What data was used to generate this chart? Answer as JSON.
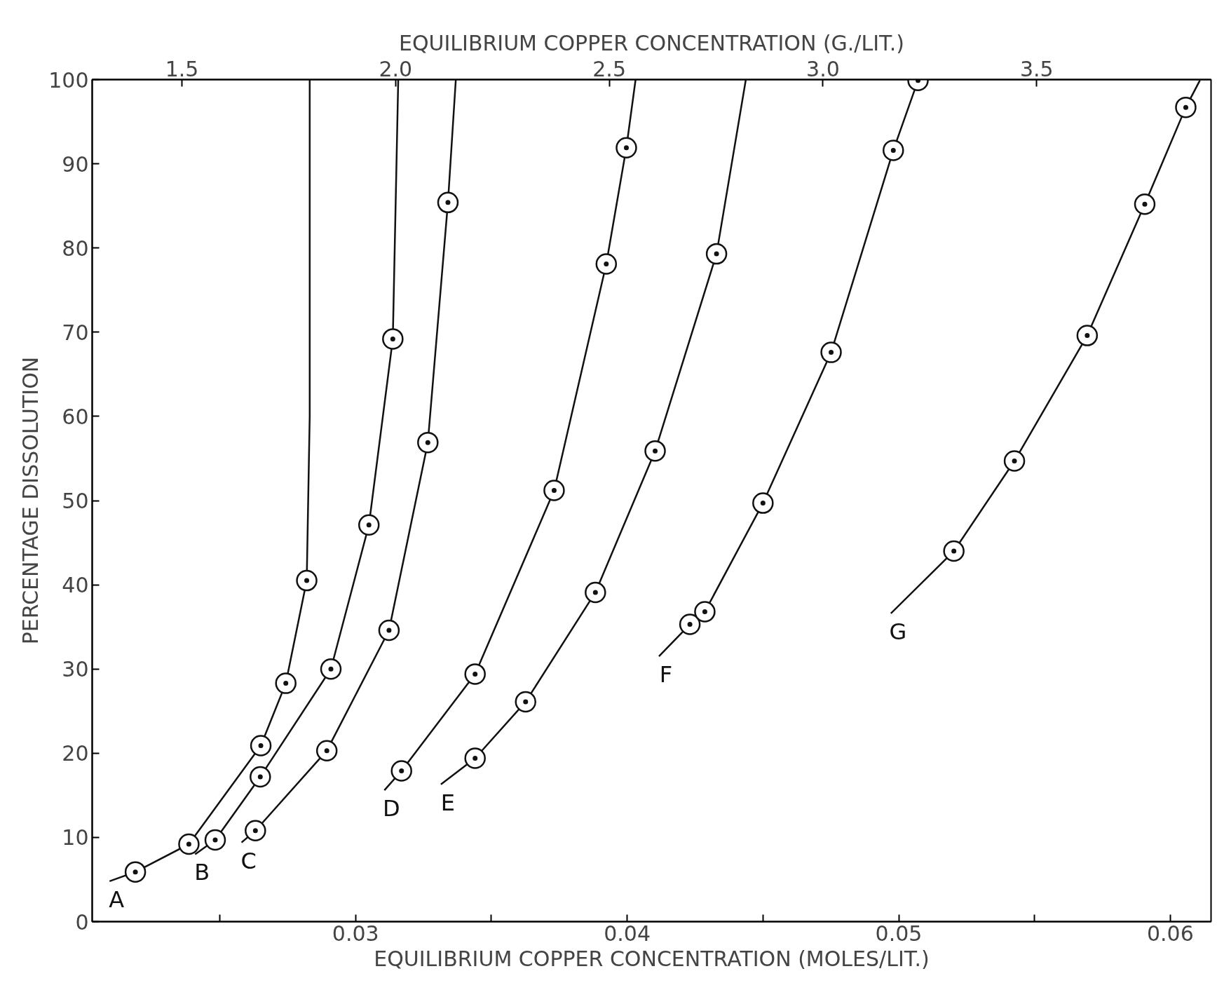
{
  "chart_data": {
    "type": "line",
    "xlabel": "EQUILIBRIUM COPPER CONCENTRATION (MOLES/LIT.)",
    "x2label": "EQUILIBRIUM COPPER CONCENTRATION (G./LIT.)",
    "ylabel": "PERCENTAGE DISSOLUTION",
    "xlim": [
      0.0203,
      0.0615
    ],
    "xticks": [
      {
        "value": 0.025,
        "label": null
      },
      0.03,
      {
        "value": 0.035,
        "label": null
      },
      0.04,
      {
        "value": 0.045,
        "label": null
      },
      0.05,
      {
        "value": 0.055,
        "label": null
      },
      0.06
    ],
    "x2lim": [
      1.29,
      3.908
    ],
    "x2ticks": [
      1.5,
      {
        "value": 2.0,
        "label": "2.0"
      },
      2.5,
      {
        "value": 3.0,
        "label": "3.0"
      },
      3.5
    ],
    "ylim": [
      0,
      100
    ],
    "yticks": [
      0,
      10,
      20,
      30,
      40,
      50,
      60,
      70,
      80,
      90,
      100
    ],
    "grid": false,
    "marker": "circle",
    "line_style": "solid",
    "series": [
      {
        "name": "A",
        "color": "#111111",
        "x": [
          0.02094,
          0.02189,
          0.02386,
          0.02651,
          0.02743,
          0.0282,
          0.02831,
          0.02831
        ],
        "values": [
          4.8,
          5.9,
          9.2,
          20.9,
          28.3,
          40.5,
          60,
          100
        ]
      },
      {
        "type": "scatter",
        "color": "#111111",
        "x": [
          0.02189,
          0.02386,
          0.02651,
          0.02743,
          0.0282
        ],
        "values": [
          5.9,
          9.2,
          20.9,
          28.3,
          40.5
        ]
      },
      {
        "name": "B",
        "color": "#111111",
        "x": [
          0.02409,
          0.02483,
          0.02649,
          0.02909,
          0.03049,
          0.03137,
          0.03157
        ],
        "values": [
          8.0,
          9.7,
          17.2,
          30.0,
          47.1,
          69.2,
          100
        ]
      },
      {
        "type": "scatter",
        "color": "#111111",
        "x": [
          0.02483,
          0.02649,
          0.02909,
          0.03049,
          0.03137
        ],
        "values": [
          9.7,
          17.2,
          30.0,
          47.1,
          69.2
        ]
      },
      {
        "name": "C",
        "color": "#111111",
        "x": [
          0.0258,
          0.02631,
          0.02894,
          0.03123,
          0.03266,
          0.0334,
          0.03369
        ],
        "values": [
          9.4,
          10.8,
          20.3,
          34.6,
          56.9,
          85.4,
          100
        ]
      },
      {
        "type": "scatter",
        "color": "#111111",
        "x": [
          0.02631,
          0.02894,
          0.03123,
          0.03266,
          0.0334
        ],
        "values": [
          10.8,
          20.3,
          34.6,
          56.9,
          85.4
        ]
      },
      {
        "name": "D",
        "color": "#111111",
        "x": [
          0.03106,
          0.03169,
          0.0344,
          0.03731,
          0.03923,
          0.03997,
          0.04031
        ],
        "values": [
          15.6,
          17.9,
          29.4,
          51.2,
          78.1,
          91.9,
          100
        ]
      },
      {
        "type": "scatter",
        "color": "#111111",
        "x": [
          0.03169,
          0.0344,
          0.03731,
          0.03923,
          0.03997
        ],
        "values": [
          17.9,
          29.4,
          51.2,
          78.1,
          91.9
        ]
      },
      {
        "name": "E",
        "color": "#111111",
        "x": [
          0.03314,
          0.0344,
          0.03626,
          0.03883,
          0.04103,
          0.04329,
          0.04437
        ],
        "values": [
          16.3,
          19.4,
          26.1,
          39.1,
          55.9,
          79.3,
          100
        ]
      },
      {
        "type": "scatter",
        "color": "#111111",
        "x": [
          0.0344,
          0.03626,
          0.03883,
          0.04103,
          0.04329
        ],
        "values": [
          19.4,
          26.1,
          39.1,
          55.9,
          79.3
        ]
      },
      {
        "name": "F",
        "color": "#111111",
        "x": [
          0.04117,
          0.04231,
          0.04286,
          0.045,
          0.04751,
          0.0498,
          0.05071
        ],
        "values": [
          31.5,
          35.3,
          36.8,
          49.7,
          67.6,
          91.6,
          99.9
        ]
      },
      {
        "type": "scatter",
        "color": "#111111",
        "x": [
          0.04231,
          0.04286,
          0.045,
          0.04751,
          0.0498,
          0.05071
        ],
        "values": [
          35.3,
          36.8,
          49.7,
          67.6,
          91.6,
          99.9
        ]
      },
      {
        "name": "G",
        "color": "#111111",
        "x": [
          0.04971,
          0.05203,
          0.05426,
          0.05694,
          0.05906,
          0.06057,
          0.06109
        ],
        "values": [
          36.6,
          44.0,
          54.7,
          69.6,
          85.2,
          96.7,
          99.9
        ]
      },
      {
        "type": "scatter",
        "color": "#111111",
        "x": [
          0.05203,
          0.05426,
          0.05694,
          0.05906,
          0.06057
        ],
        "values": [
          44.0,
          54.7,
          69.6,
          85.2,
          96.7
        ]
      }
    ]
  }
}
